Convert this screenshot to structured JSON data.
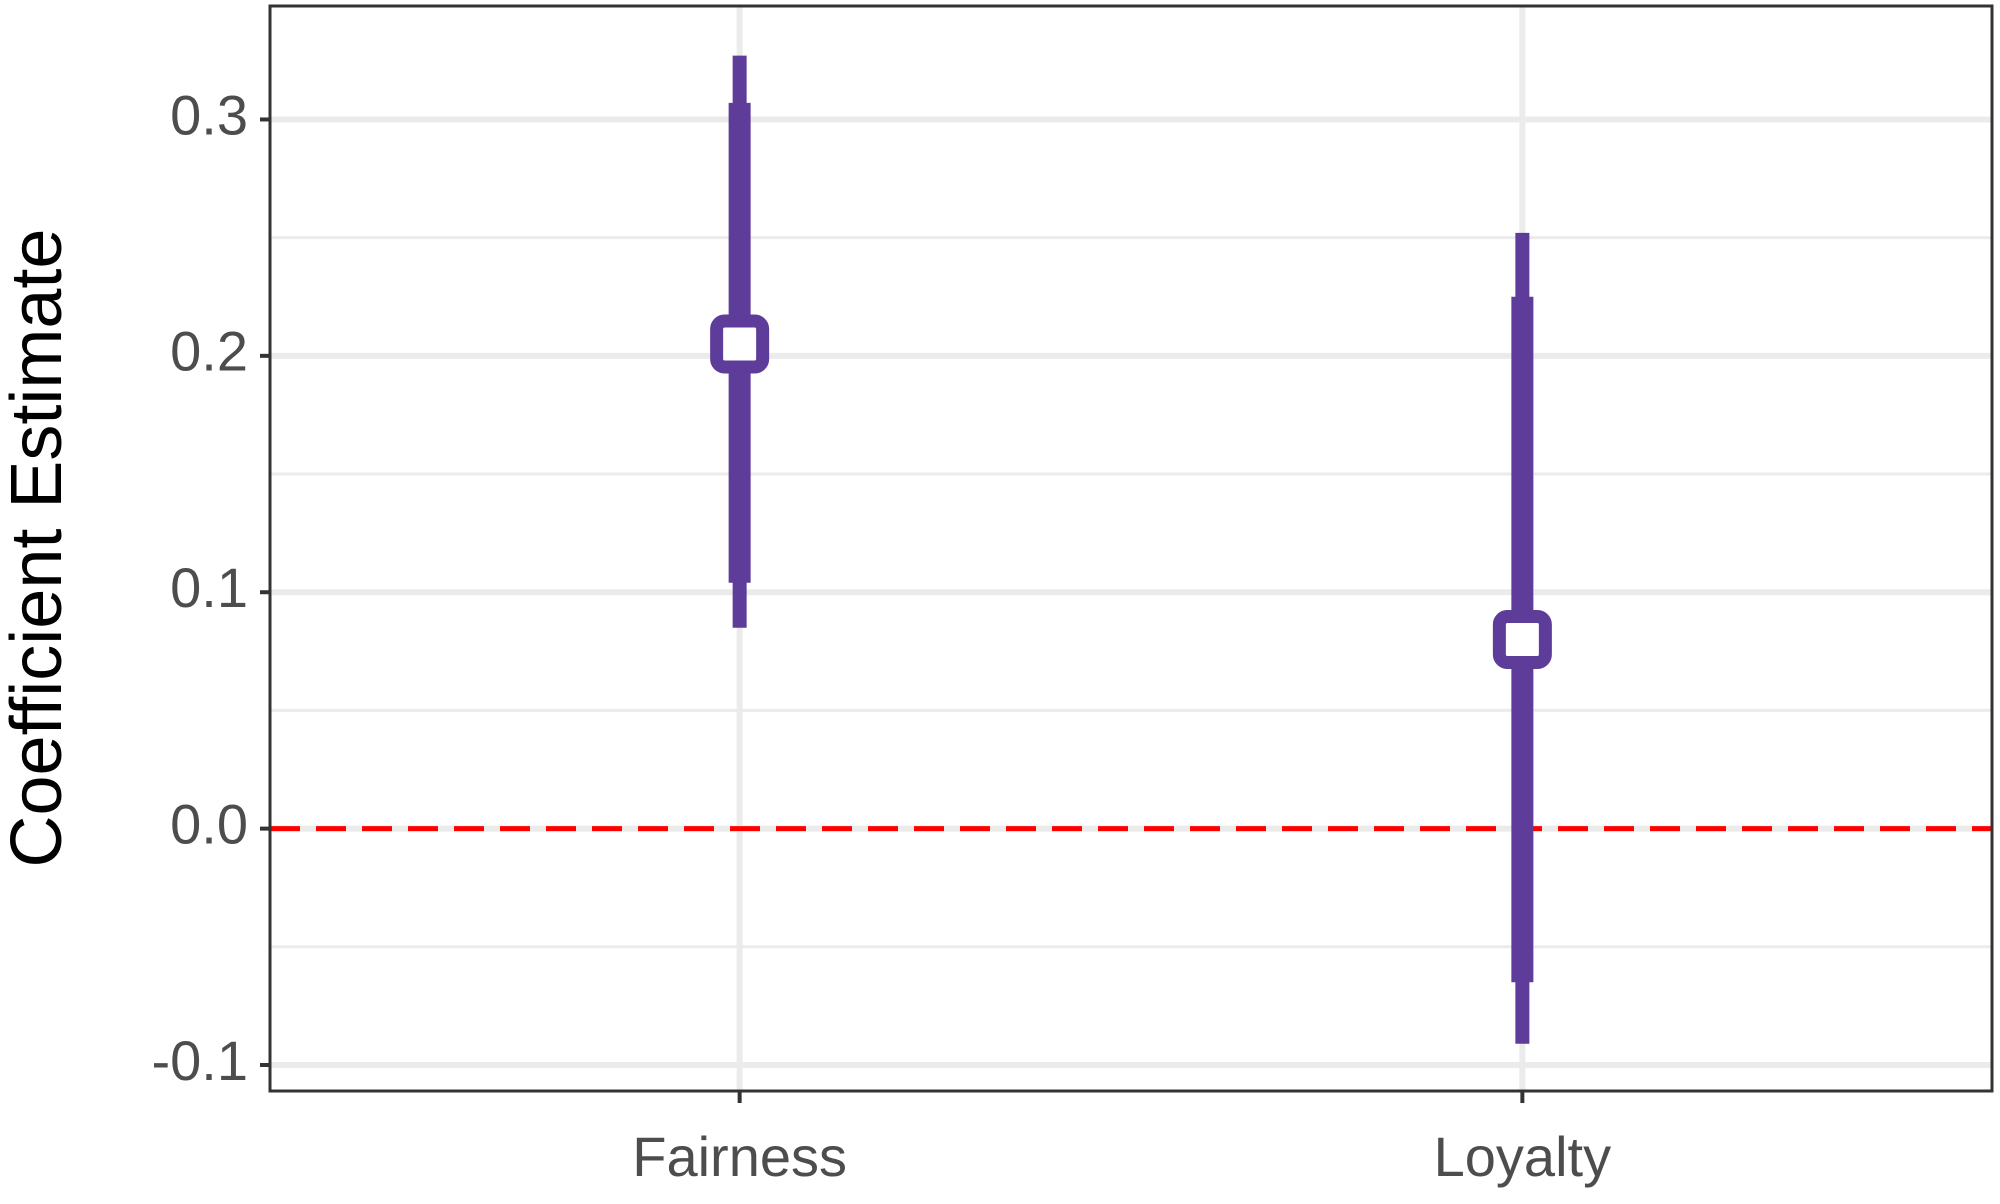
{
  "chart_data": {
    "type": "pointrange",
    "y_label": "Coefficient Estimate",
    "categories": [
      "Fairness",
      "Loyalty"
    ],
    "values": [
      0.205,
      0.08
    ],
    "inner_low": [
      0.104,
      -0.065
    ],
    "inner_high": [
      0.307,
      0.225
    ],
    "outer_low": [
      0.085,
      -0.091
    ],
    "outer_high": [
      0.327,
      0.252
    ],
    "color": "#5e3c99",
    "ylim": [
      -0.111,
      0.348
    ],
    "yticks": [
      -0.1,
      {
        "value": 0,
        "label": "0.0"
      },
      0.1,
      0.2,
      0.3
    ],
    "minor_gridlines": [
      -0.05,
      0.05,
      0.15,
      0.25
    ],
    "grid": true,
    "hline": 0,
    "hline_color": "#ff0000"
  }
}
